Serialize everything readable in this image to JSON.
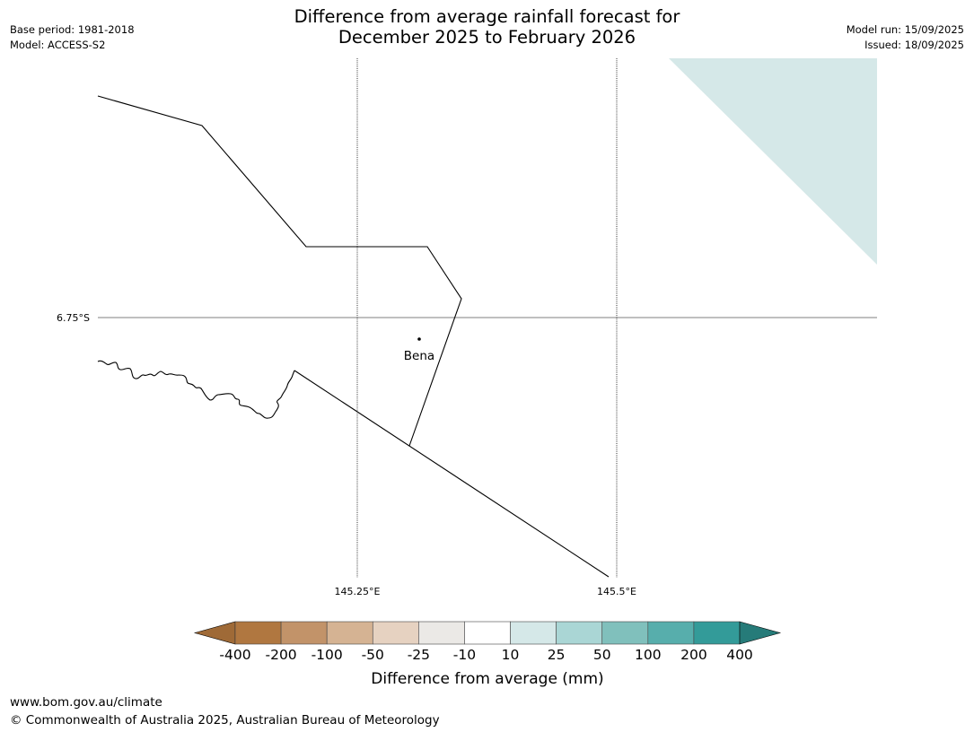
{
  "header": {
    "title_line1": "Difference from average rainfall forecast for",
    "title_line2": "December 2025 to February 2026",
    "base_period": "Base period: 1981-2018",
    "model": "Model: ACCESS-S2",
    "model_run": "Model run: 15/09/2025",
    "issued": "Issued: 18/09/2025"
  },
  "map": {
    "lat_label": "6.75°S",
    "lon_labels": [
      "145.25°E",
      "145.5°E"
    ],
    "place": {
      "name": "Bena"
    },
    "shade_color": "#d5e8e8"
  },
  "colorbar": {
    "title": "Difference from average (mm)",
    "tick_labels": [
      "-400",
      "-200",
      "-100",
      "-50",
      "-25",
      "-10",
      "10",
      "25",
      "50",
      "100",
      "200",
      "400"
    ],
    "colors": [
      "#9f6a37",
      "#b07740",
      "#c29369",
      "#d5b393",
      "#e6d2c1",
      "#ebe9e6",
      "#ffffff",
      "#d5e8e8",
      "#aad6d5",
      "#80c0bc",
      "#57aeac",
      "#339b99",
      "#267b79"
    ]
  },
  "footer": {
    "url": "www.bom.gov.au/climate",
    "copyright": "© Commonwealth of Australia 2025, Australian Bureau of Meteorology"
  }
}
